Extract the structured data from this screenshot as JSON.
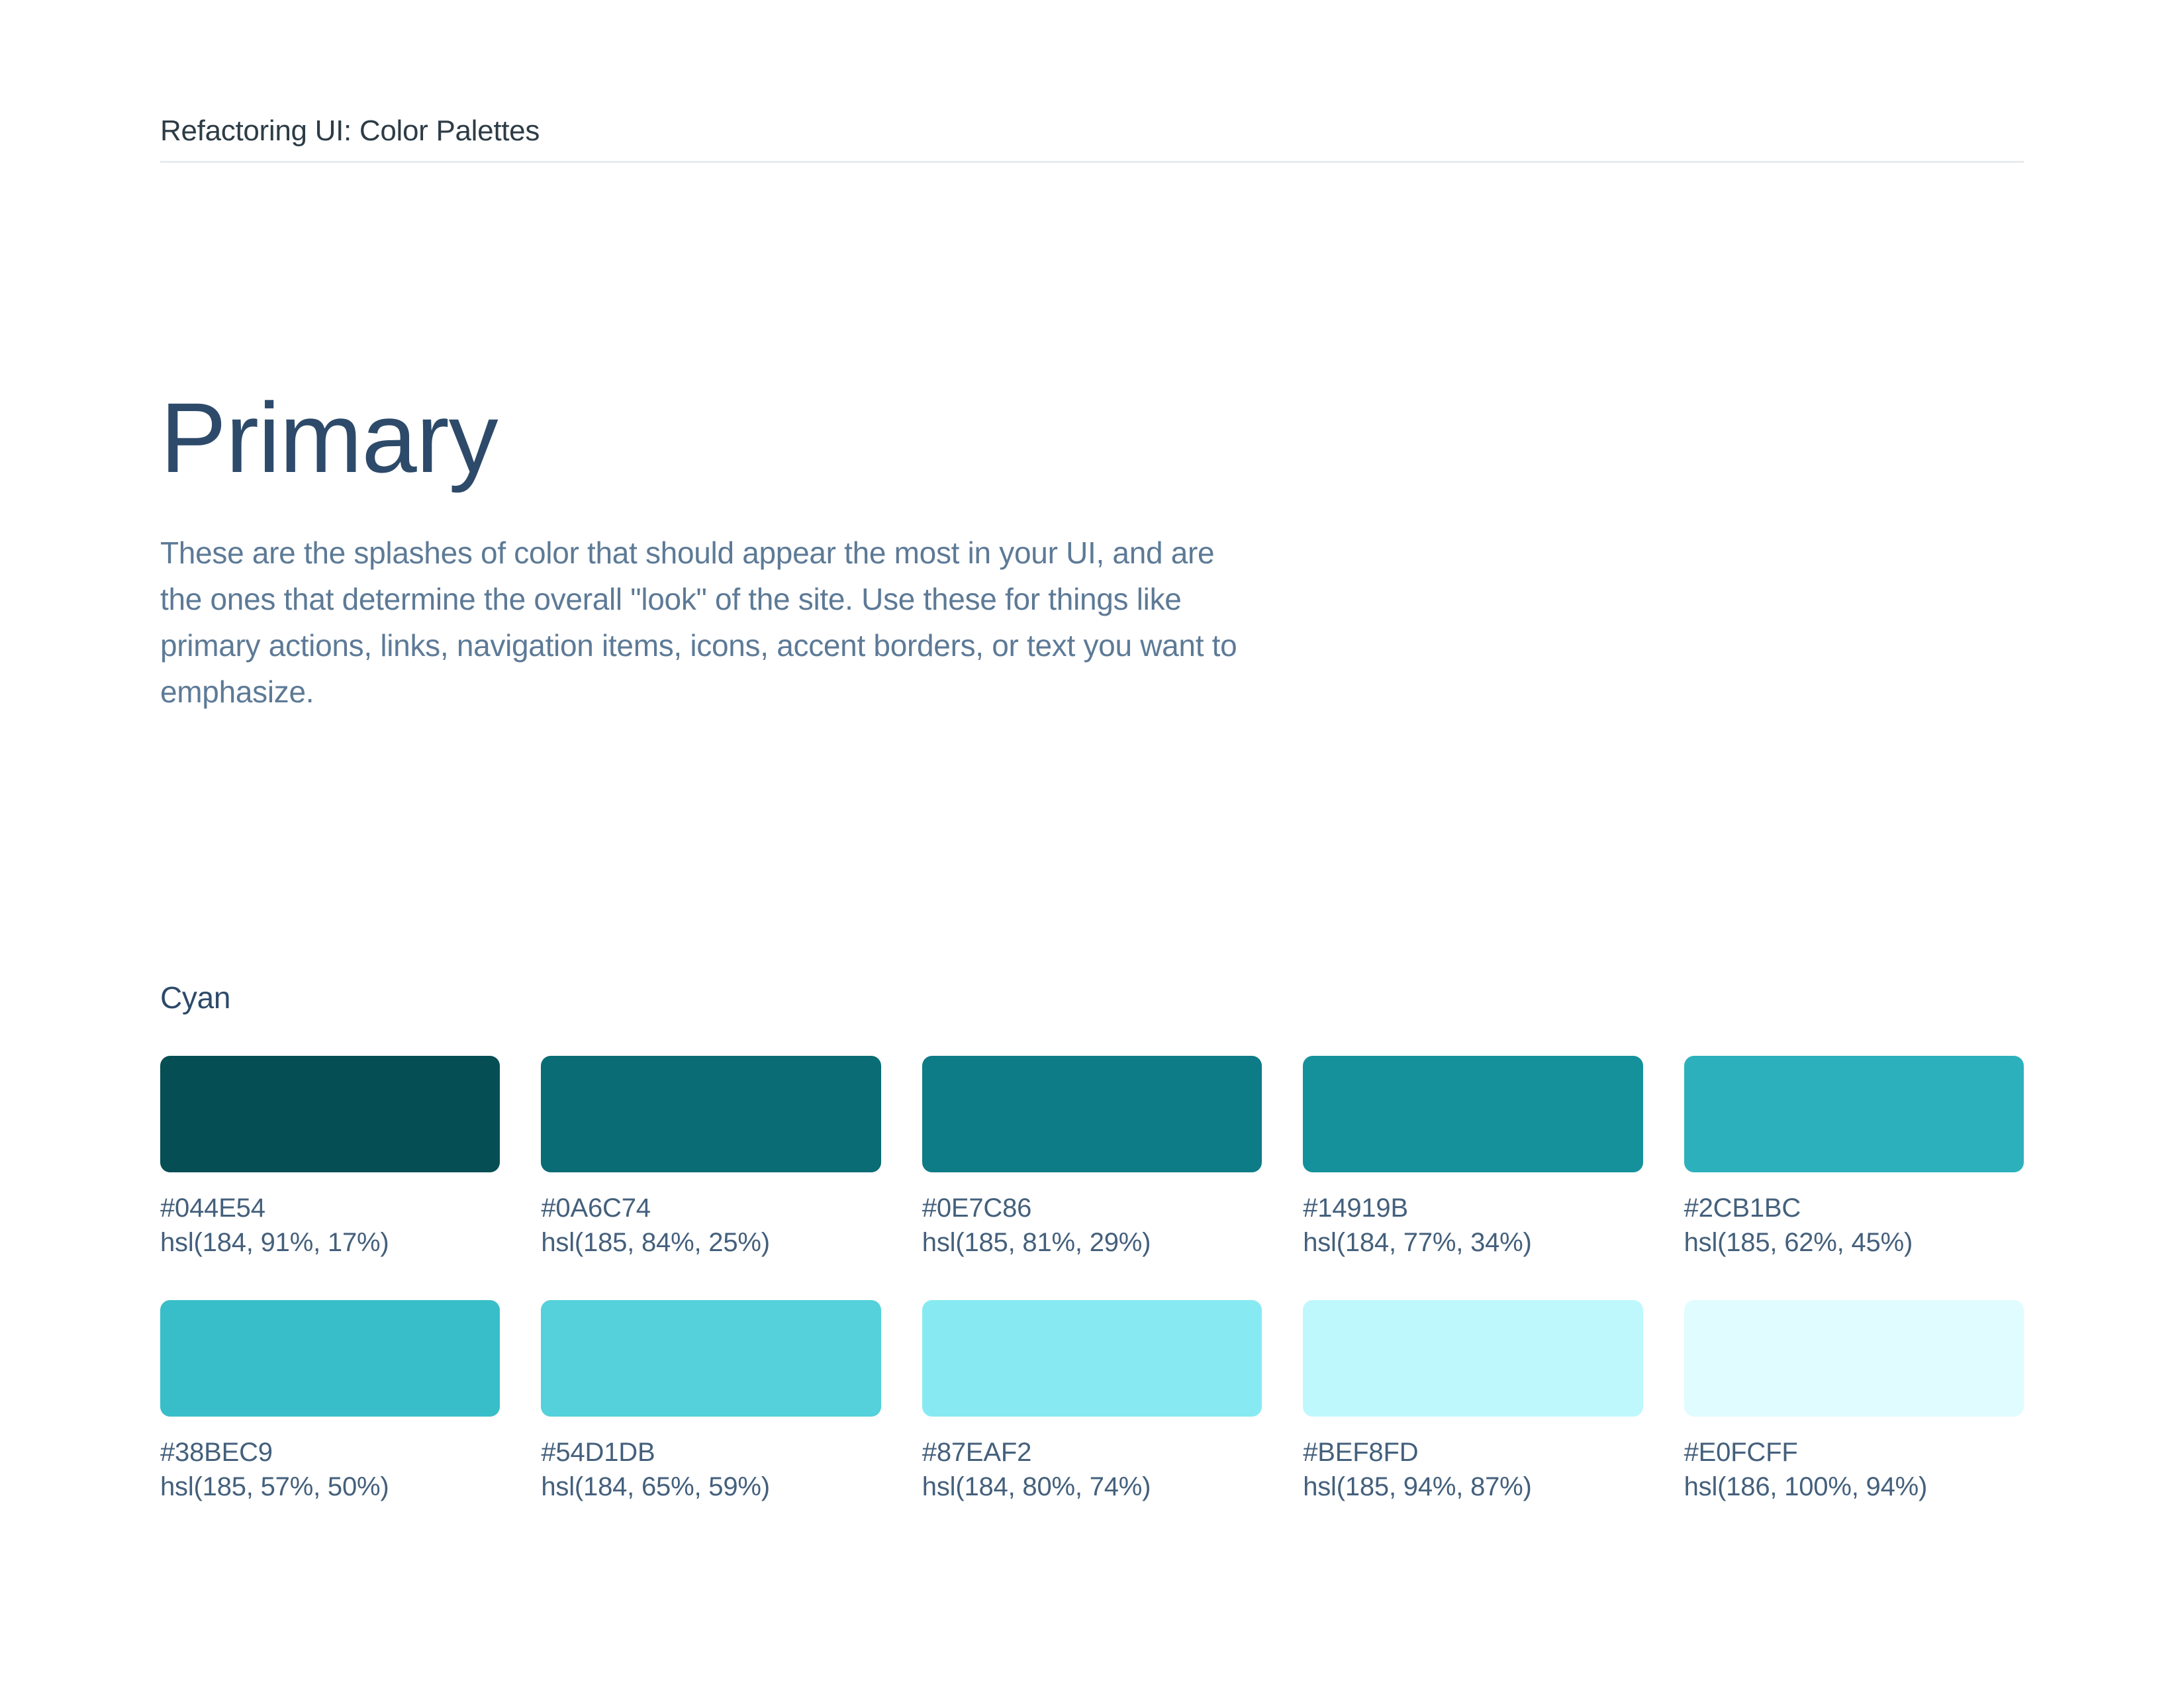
{
  "page": {
    "header": {
      "title": "Refactoring UI: Color Palettes"
    },
    "section": {
      "title": "Primary",
      "description": "These are the splashes of color that should appear the most in your UI, and are the ones that determine the overall \"look\" of the site. Use these for things like primary actions, links, navigation items, icons, accent borders, or text you want to emphasize."
    },
    "palette": {
      "name": "Cyan",
      "swatches": [
        {
          "hex": "#044E54",
          "hsl": "hsl(184, 91%, 17%)"
        },
        {
          "hex": "#0A6C74",
          "hsl": "hsl(185, 84%, 25%)"
        },
        {
          "hex": "#0E7C86",
          "hsl": "hsl(185, 81%, 29%)"
        },
        {
          "hex": "#14919B",
          "hsl": "hsl(184, 77%, 34%)"
        },
        {
          "hex": "#2CB1BC",
          "hsl": "hsl(185, 62%, 45%)"
        },
        {
          "hex": "#38BEC9",
          "hsl": "hsl(185, 57%, 50%)"
        },
        {
          "hex": "#54D1DB",
          "hsl": "hsl(184, 65%, 59%)"
        },
        {
          "hex": "#87EAF2",
          "hsl": "hsl(184, 80%, 74%)"
        },
        {
          "hex": "#BEF8FD",
          "hsl": "hsl(185, 94%, 87%)"
        },
        {
          "hex": "#E0FCFF",
          "hsl": "hsl(186, 100%, 94%)"
        }
      ]
    },
    "colors": {
      "background": "#ffffff",
      "divider": "#e7ebee",
      "header_text": "#2d3c46",
      "heading_text": "#2d4a6a",
      "body_text": "#5d7a96",
      "label_text": "#44607c"
    }
  }
}
